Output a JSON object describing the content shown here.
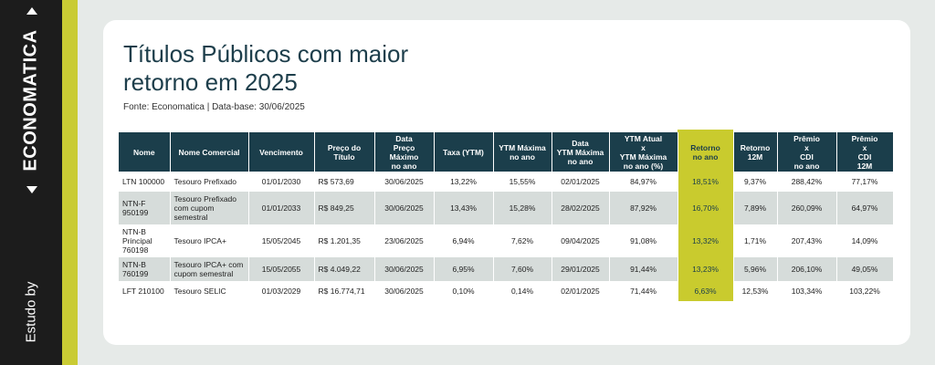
{
  "sidebar": {
    "brand": "ECONOMATICA",
    "by": "Estudo by"
  },
  "header": {
    "title": "Títulos Públicos com maior retorno em 2025",
    "source": "Fonte: Economatica | Data-base: 30/06/2025"
  },
  "table": {
    "columns": [
      "Nome",
      "Nome Comercial",
      "Vencimento",
      "Preço do\nTítulo",
      "Data\nPreço\nMáximo\nno ano",
      "Taxa (YTM)",
      "YTM Máxima\nno ano",
      "Data\nYTM Máxima\nno ano",
      "YTM Atual\nx\nYTM Máxima\nno ano (%)",
      "Retorno\nno ano",
      "Retorno\n12M",
      "Prêmio\nx\nCDI\nno ano",
      "Prêmio\nx\nCDI\n12M"
    ],
    "rows": [
      [
        "LTN 100000",
        "Tesouro Prefixado",
        "01/01/2030",
        "R$ 573,69",
        "30/06/2025",
        "13,22%",
        "15,55%",
        "02/01/2025",
        "84,97%",
        "18,51%",
        "9,37%",
        "288,42%",
        "77,17%"
      ],
      [
        "NTN-F 950199",
        "Tesouro Prefixado com cupom semestral",
        "01/01/2033",
        "R$ 849,25",
        "30/06/2025",
        "13,43%",
        "15,28%",
        "28/02/2025",
        "87,92%",
        "16,70%",
        "7,89%",
        "260,09%",
        "64,97%"
      ],
      [
        "NTN-B Principal 760198",
        "Tesouro IPCA+",
        "15/05/2045",
        "R$ 1.201,35",
        "23/06/2025",
        "6,94%",
        "7,62%",
        "09/04/2025",
        "91,08%",
        "13,32%",
        "1,71%",
        "207,43%",
        "14,09%"
      ],
      [
        "NTN-B 760199",
        "Tesouro IPCA+ com cupom semestral",
        "15/05/2055",
        "R$ 4.049,22",
        "30/06/2025",
        "6,95%",
        "7,60%",
        "29/01/2025",
        "91,44%",
        "13,23%",
        "5,96%",
        "206,10%",
        "49,05%"
      ],
      [
        "LFT 210100",
        "Tesouro SELIC",
        "01/03/2029",
        "R$ 16.774,71",
        "30/06/2025",
        "0,10%",
        "0,14%",
        "02/01/2025",
        "71,44%",
        "6,63%",
        "12,53%",
        "103,34%",
        "103,22%"
      ]
    ]
  }
}
